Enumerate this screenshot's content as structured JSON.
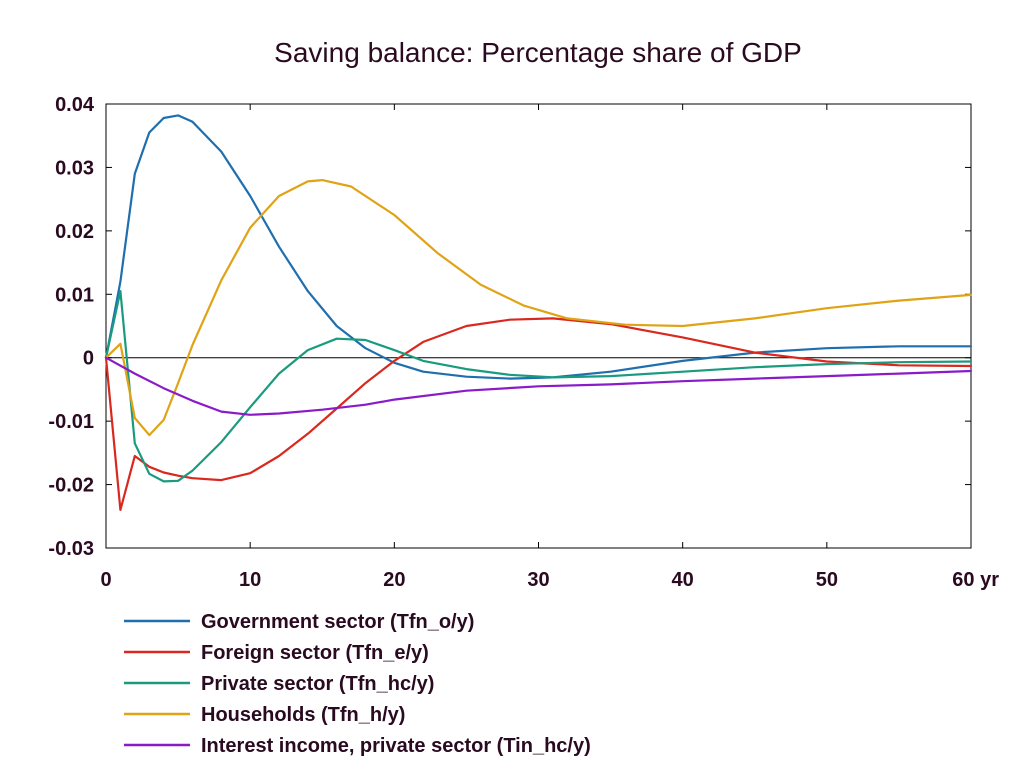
{
  "chart_data": {
    "type": "line",
    "title": "Saving balance: Percentage share of GDP",
    "xlabel": "",
    "ylabel": "",
    "xlim": [
      0,
      60
    ],
    "ylim": [
      -0.03,
      0.04
    ],
    "x_ticks": [
      0,
      10,
      20,
      30,
      40,
      50,
      60
    ],
    "x_tick_labels": [
      "0",
      "10",
      "20",
      "30",
      "40",
      "50",
      "60 yr"
    ],
    "y_ticks": [
      -0.03,
      -0.02,
      -0.01,
      0,
      0.01,
      0.02,
      0.03,
      0.04
    ],
    "y_tick_labels": [
      "-0.03",
      "-0.02",
      "-0.01",
      "0",
      "0.01",
      "0.02",
      "0.03",
      "0.04"
    ],
    "grid": false,
    "zero_line": true,
    "legend_position": "bottom-left",
    "series": [
      {
        "name": "Government sector (Tfn_o/y)",
        "color": "#1f6fae",
        "points": [
          [
            0,
            0
          ],
          [
            1,
            0.012
          ],
          [
            2,
            0.029
          ],
          [
            3,
            0.0355
          ],
          [
            4,
            0.0378
          ],
          [
            5,
            0.0382
          ],
          [
            6,
            0.0372
          ],
          [
            8,
            0.0325
          ],
          [
            10,
            0.0255
          ],
          [
            12,
            0.0175
          ],
          [
            14,
            0.0105
          ],
          [
            16,
            0.005
          ],
          [
            18,
            0.0015
          ],
          [
            20,
            -0.0008
          ],
          [
            22,
            -0.0022
          ],
          [
            25,
            -0.003
          ],
          [
            28,
            -0.0033
          ],
          [
            31,
            -0.0031
          ],
          [
            35,
            -0.0022
          ],
          [
            40,
            -0.0005
          ],
          [
            45,
            0.0008
          ],
          [
            50,
            0.0015
          ],
          [
            55,
            0.0018
          ],
          [
            60,
            0.0018
          ]
        ]
      },
      {
        "name": "Foreign sector (Tfn_e/y)",
        "color": "#d9281e",
        "points": [
          [
            0,
            0
          ],
          [
            1,
            -0.024
          ],
          [
            2,
            -0.0155
          ],
          [
            3,
            -0.0172
          ],
          [
            4,
            -0.0181
          ],
          [
            5,
            -0.0186
          ],
          [
            6,
            -0.019
          ],
          [
            8,
            -0.0193
          ],
          [
            10,
            -0.0182
          ],
          [
            12,
            -0.0155
          ],
          [
            14,
            -0.012
          ],
          [
            16,
            -0.008
          ],
          [
            18,
            -0.004
          ],
          [
            20,
            -0.0005
          ],
          [
            22,
            0.0025
          ],
          [
            25,
            0.005
          ],
          [
            28,
            0.006
          ],
          [
            31,
            0.0062
          ],
          [
            35,
            0.0053
          ],
          [
            40,
            0.0032
          ],
          [
            45,
            0.0008
          ],
          [
            50,
            -0.0006
          ],
          [
            55,
            -0.0012
          ],
          [
            60,
            -0.0013
          ]
        ]
      },
      {
        "name": "Private sector (Tfn_hc/y)",
        "color": "#1a9a7e",
        "points": [
          [
            0,
            0
          ],
          [
            1,
            0.0105
          ],
          [
            2,
            -0.0135
          ],
          [
            3,
            -0.0183
          ],
          [
            4,
            -0.0195
          ],
          [
            5,
            -0.0194
          ],
          [
            6,
            -0.0178
          ],
          [
            8,
            -0.0133
          ],
          [
            10,
            -0.0078
          ],
          [
            12,
            -0.0025
          ],
          [
            14,
            0.0012
          ],
          [
            16,
            0.003
          ],
          [
            18,
            0.0028
          ],
          [
            20,
            0.0012
          ],
          [
            22,
            -0.0005
          ],
          [
            25,
            -0.0018
          ],
          [
            28,
            -0.0027
          ],
          [
            31,
            -0.0031
          ],
          [
            35,
            -0.0029
          ],
          [
            40,
            -0.0022
          ],
          [
            45,
            -0.0015
          ],
          [
            50,
            -0.001
          ],
          [
            55,
            -0.0007
          ],
          [
            60,
            -0.0006
          ]
        ]
      },
      {
        "name": "Households (Tfn_h/y)",
        "color": "#e0a316",
        "points": [
          [
            0,
            0
          ],
          [
            1,
            0.0022
          ],
          [
            2,
            -0.0095
          ],
          [
            3,
            -0.0122
          ],
          [
            4,
            -0.0098
          ],
          [
            5,
            -0.004
          ],
          [
            6,
            0.002
          ],
          [
            8,
            0.0122
          ],
          [
            10,
            0.0205
          ],
          [
            12,
            0.0255
          ],
          [
            14,
            0.0278
          ],
          [
            15,
            0.028
          ],
          [
            17,
            0.027
          ],
          [
            20,
            0.0225
          ],
          [
            23,
            0.0165
          ],
          [
            26,
            0.0115
          ],
          [
            29,
            0.0082
          ],
          [
            32,
            0.0062
          ],
          [
            36,
            0.0052
          ],
          [
            40,
            0.005
          ],
          [
            45,
            0.0062
          ],
          [
            50,
            0.0078
          ],
          [
            55,
            0.009
          ],
          [
            60,
            0.0099
          ]
        ]
      },
      {
        "name": "Interest income, private sector (Tin_hc/y)",
        "color": "#8a1bc8",
        "points": [
          [
            0,
            0
          ],
          [
            2,
            -0.0025
          ],
          [
            4,
            -0.0048
          ],
          [
            6,
            -0.0068
          ],
          [
            8,
            -0.0085
          ],
          [
            10,
            -0.009
          ],
          [
            12,
            -0.0088
          ],
          [
            15,
            -0.0082
          ],
          [
            18,
            -0.0074
          ],
          [
            20,
            -0.0066
          ],
          [
            25,
            -0.0052
          ],
          [
            30,
            -0.0045
          ],
          [
            35,
            -0.0042
          ],
          [
            40,
            -0.0037
          ],
          [
            45,
            -0.0033
          ],
          [
            50,
            -0.0029
          ],
          [
            55,
            -0.0025
          ],
          [
            60,
            -0.0021
          ]
        ]
      }
    ]
  }
}
